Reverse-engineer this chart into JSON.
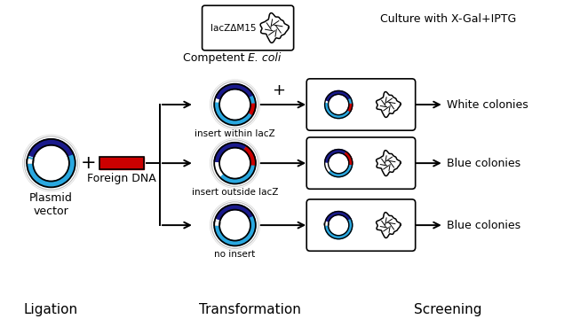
{
  "bg": "#ffffff",
  "dark_blue": "#1a1a8c",
  "light_blue": "#29a8e0",
  "red": "#cc0000",
  "black": "#000000",
  "white": "#ffffff",
  "ligation": "Ligation",
  "transformation": "Transformation",
  "screening": "Screening",
  "plasmid_label": "Plasmid\nvector",
  "foreign_label": "Foreign DNA",
  "ecoli_box_label": "lacZΔM15",
  "culture_label": "Culture with X-Gal+IPTG",
  "insert_within": "insert within lacZ",
  "insert_outside": "insert outside lacZ",
  "no_insert": "no insert",
  "white_col": "White colonies",
  "blue_col1": "Blue colonies",
  "blue_col2": "Blue colonies"
}
